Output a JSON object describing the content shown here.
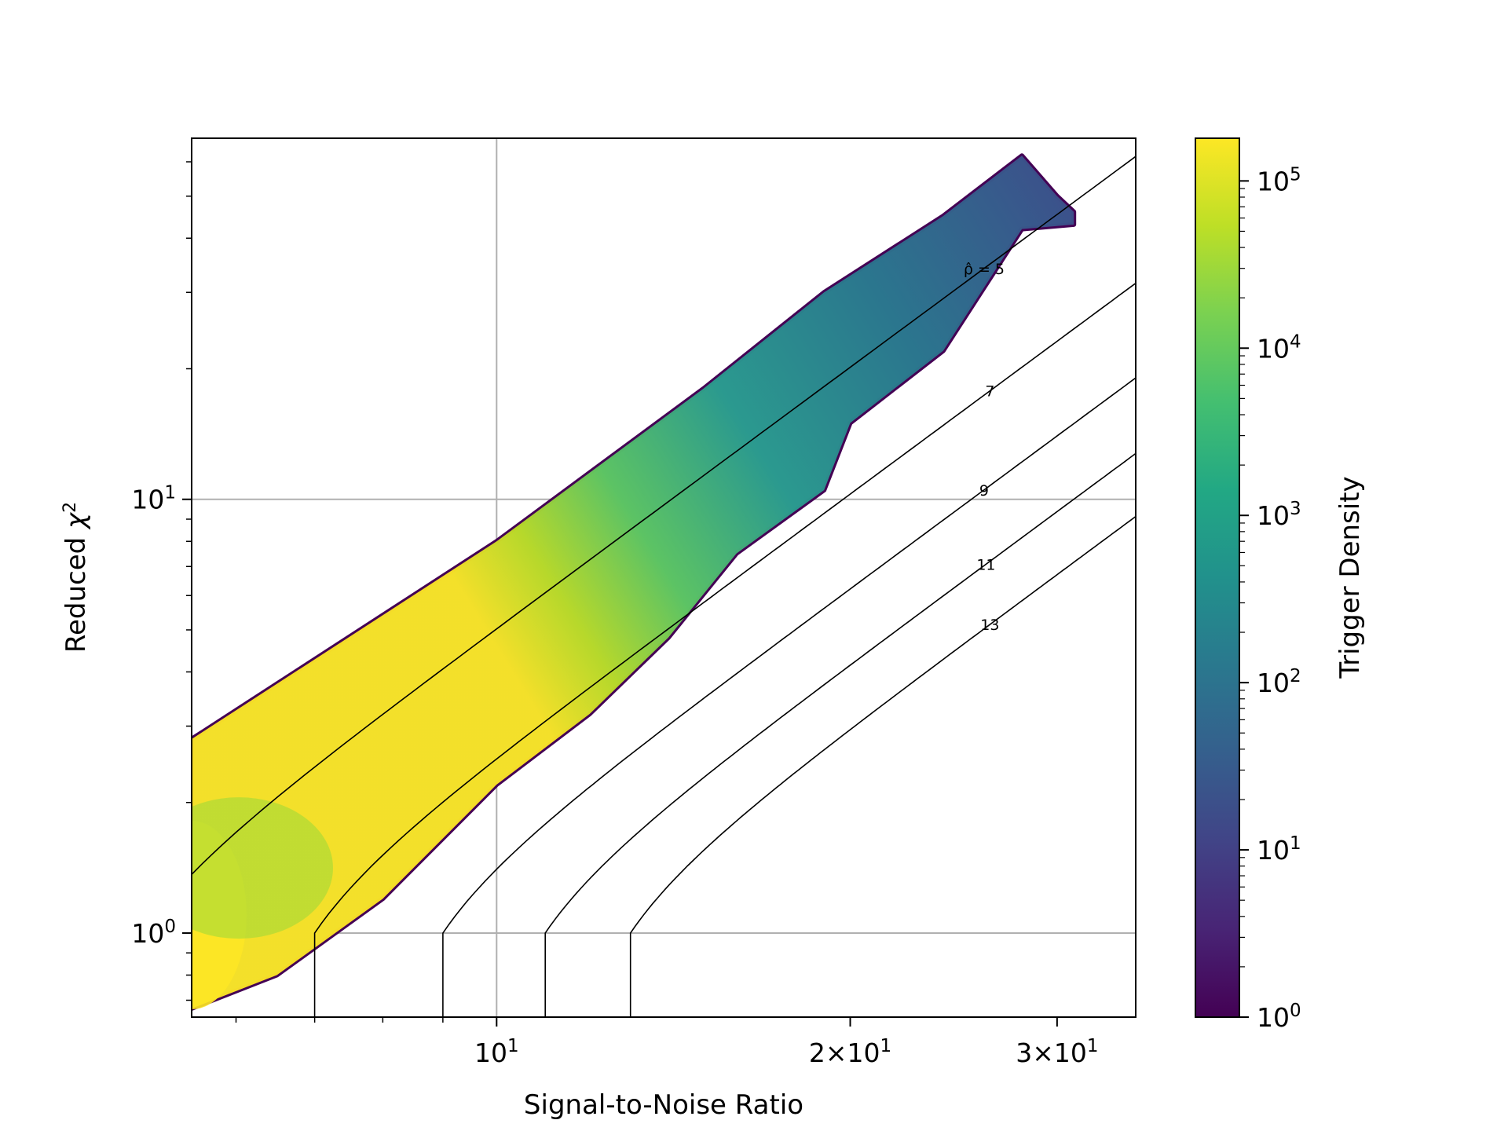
{
  "chart_data": {
    "type": "heatmap",
    "subtype": "hexbin",
    "title": "",
    "xlabel": "Signal-to-Noise Ratio",
    "ylabel": "Reduced χ²",
    "ylabel_main": "Reduced ",
    "ylabel_symbol": "χ",
    "ylabel_sup": "2",
    "xscale": "log",
    "yscale": "log",
    "xlim": [
      5.5,
      35
    ],
    "ylim": [
      0.64,
      68
    ],
    "grid": true,
    "x_ticks": [
      {
        "value": 10,
        "base": "10",
        "exp": "1",
        "mult": ""
      },
      {
        "value": 20,
        "base": "10",
        "exp": "1",
        "mult": "2×"
      },
      {
        "value": 30,
        "base": "10",
        "exp": "1",
        "mult": "3×"
      }
    ],
    "y_ticks": [
      {
        "value": 1,
        "base": "10",
        "exp": "0"
      },
      {
        "value": 10,
        "base": "10",
        "exp": "1"
      }
    ],
    "colorbar": {
      "label": "Trigger Density",
      "scale": "log",
      "colormap": "viridis",
      "min": 1,
      "max": 180000,
      "ticks": [
        {
          "value": 1,
          "base": "10",
          "exp": "0"
        },
        {
          "value": 10,
          "base": "10",
          "exp": "1"
        },
        {
          "value": 100,
          "base": "10",
          "exp": "2"
        },
        {
          "value": 1000,
          "base": "10",
          "exp": "3"
        },
        {
          "value": 10000,
          "base": "10",
          "exp": "4"
        },
        {
          "value": 100000,
          "base": "10",
          "exp": "5"
        }
      ]
    },
    "contours": [
      {
        "rho": 5,
        "label": "ρ̂ = 5",
        "label_snr": 26.0
      },
      {
        "rho": 7,
        "label": "7",
        "label_snr": 26.3
      },
      {
        "rho": 9,
        "label": "9",
        "label_snr": 26.0
      },
      {
        "rho": 11,
        "label": "11",
        "label_snr": 26.1
      },
      {
        "rho": 13,
        "label": "13",
        "label_snr": 26.3
      }
    ],
    "density_region": {
      "description_points_upper_edge": [
        [
          5.5,
          2.8
        ],
        [
          10,
          8.0
        ],
        [
          15,
          18
        ],
        [
          19,
          30
        ],
        [
          24,
          45
        ],
        [
          28,
          62
        ],
        [
          30,
          50
        ],
        [
          31,
          46
        ]
      ],
      "description_points_lower_edge": [
        [
          5.5,
          0.67
        ],
        [
          6.5,
          0.8
        ],
        [
          8,
          1.2
        ],
        [
          10,
          2.2
        ],
        [
          12,
          3.2
        ],
        [
          14,
          4.8
        ],
        [
          16,
          7.5
        ],
        [
          19,
          10.5
        ],
        [
          20,
          15
        ],
        [
          24,
          22
        ],
        [
          28,
          42
        ],
        [
          31,
          43
        ]
      ],
      "peak": {
        "x": 5.5,
        "y": 1.1,
        "density": 180000
      }
    }
  }
}
